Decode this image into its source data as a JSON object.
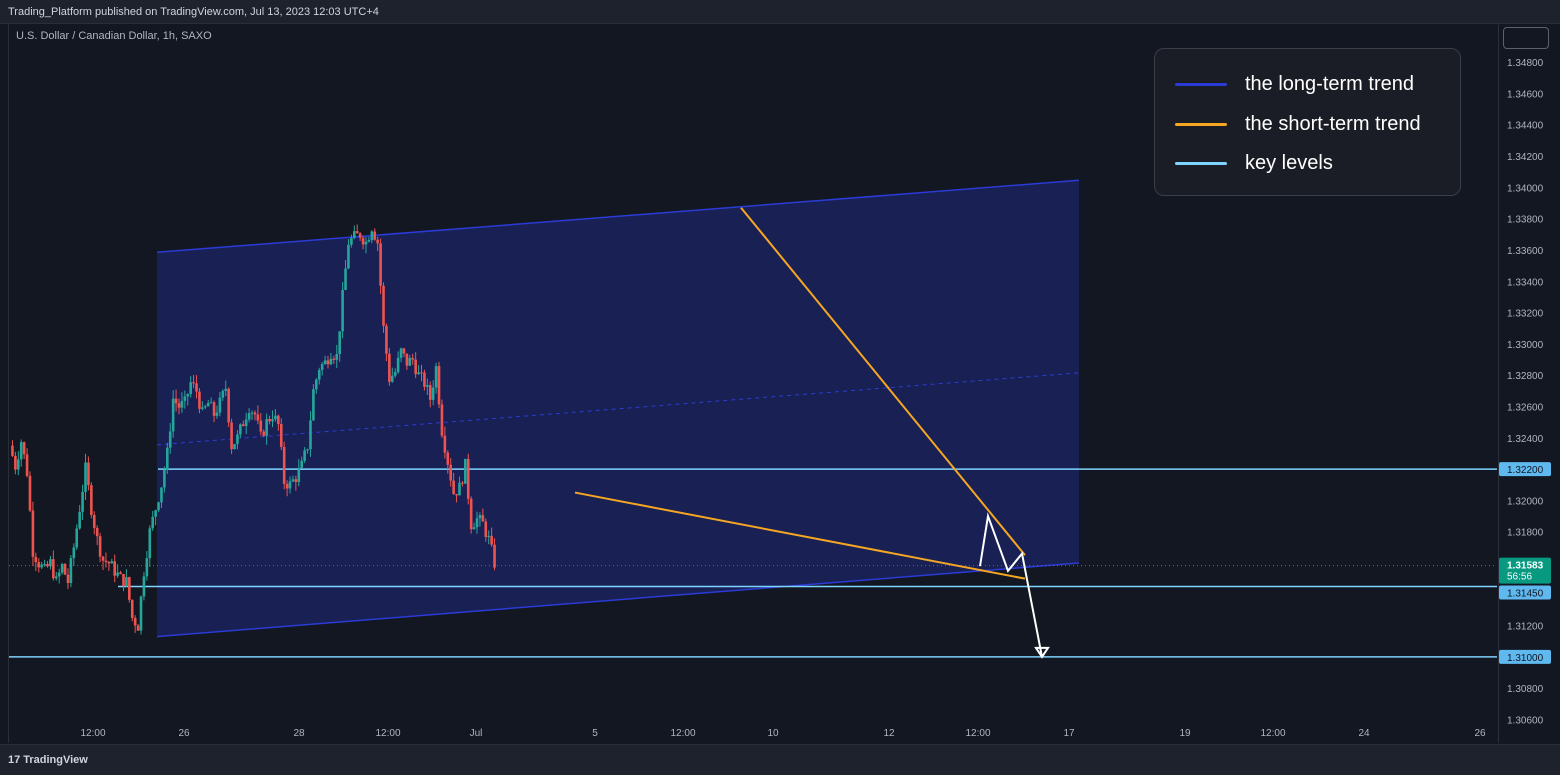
{
  "header": {
    "published": "Trading_Platform published on TradingView.com, Jul 13, 2023 12:03 UTC+4"
  },
  "symbol": "U.S. Dollar / Canadian Dollar, 1h, SAXO",
  "footer": {
    "brand": "TradingView"
  },
  "colors": {
    "background": "#131722",
    "up": "#26a69a",
    "down": "#ef5350",
    "channel": "#2b3bd6",
    "short_trend": "#f5a623",
    "key_level": "#7fd3ff",
    "projection": "#ffffff",
    "last_price_badge": "#089981"
  },
  "legend": [
    {
      "label": "the long-term trend",
      "color": "#2b3bd6"
    },
    {
      "label": "the short-term trend",
      "color": "#f5a623"
    },
    {
      "label": "key levels",
      "color": "#7fd3ff"
    }
  ],
  "chart_data": {
    "type": "candlestick",
    "ylim": [
      1.3045,
      1.3505
    ],
    "y_ticks": [
      "1.30600",
      "1.30800",
      "1.31000",
      "1.31200",
      "1.31400",
      "1.31600",
      "1.31800",
      "1.32000",
      "1.32200",
      "1.32400",
      "1.32600",
      "1.32800",
      "1.33000",
      "1.33200",
      "1.33400",
      "1.33600",
      "1.33800",
      "1.34000",
      "1.34200",
      "1.34400",
      "1.34600",
      "1.34800"
    ],
    "x_ticks": [
      "12:00",
      "26",
      "28",
      "12:00",
      "Jul",
      "5",
      "12:00",
      "10",
      "12",
      "12:00",
      "17",
      "19",
      "12:00",
      "24",
      "26"
    ],
    "last_price": {
      "value": "1.31583",
      "countdown": "56:56"
    },
    "key_levels": [
      {
        "label": "1.32200",
        "value": 1.322
      },
      {
        "label": "1.31450",
        "value": 1.3145
      },
      {
        "label": "1.31000",
        "value": 1.31
      }
    ],
    "price_path": [
      [
        0,
        1.3235
      ],
      [
        2,
        1.3222
      ],
      [
        4,
        1.3238
      ],
      [
        6,
        1.3218
      ],
      [
        8,
        1.3168
      ],
      [
        10,
        1.316
      ],
      [
        12,
        1.3155
      ],
      [
        14,
        1.316
      ],
      [
        16,
        1.3148
      ],
      [
        18,
        1.3158
      ],
      [
        20,
        1.3148
      ],
      [
        22,
        1.317
      ],
      [
        24,
        1.3195
      ],
      [
        26,
        1.322
      ],
      [
        28,
        1.3195
      ],
      [
        30,
        1.3175
      ],
      [
        32,
        1.3162
      ],
      [
        34,
        1.316
      ],
      [
        36,
        1.3155
      ],
      [
        38,
        1.315
      ],
      [
        40,
        1.3148
      ],
      [
        42,
        1.3125
      ],
      [
        44,
        1.312
      ],
      [
        46,
        1.3155
      ],
      [
        48,
        1.318
      ],
      [
        50,
        1.3195
      ],
      [
        52,
        1.321
      ],
      [
        54,
        1.323
      ],
      [
        56,
        1.3265
      ],
      [
        58,
        1.326
      ],
      [
        60,
        1.3262
      ],
      [
        62,
        1.3275
      ],
      [
        64,
        1.327
      ],
      [
        66,
        1.3255
      ],
      [
        68,
        1.3262
      ],
      [
        70,
        1.3255
      ],
      [
        72,
        1.3262
      ],
      [
        74,
        1.3272
      ],
      [
        76,
        1.3235
      ],
      [
        78,
        1.324
      ],
      [
        80,
        1.325
      ],
      [
        82,
        1.326
      ],
      [
        84,
        1.3255
      ],
      [
        86,
        1.324
      ],
      [
        88,
        1.325
      ],
      [
        90,
        1.3255
      ],
      [
        92,
        1.3248
      ],
      [
        94,
        1.3212
      ],
      [
        96,
        1.321
      ],
      [
        98,
        1.3215
      ],
      [
        100,
        1.3222
      ],
      [
        102,
        1.3235
      ],
      [
        104,
        1.327
      ],
      [
        106,
        1.3285
      ],
      [
        108,
        1.3288
      ],
      [
        110,
        1.3295
      ],
      [
        112,
        1.3292
      ],
      [
        114,
        1.333
      ],
      [
        116,
        1.3365
      ],
      [
        118,
        1.3368
      ],
      [
        120,
        1.337
      ],
      [
        122,
        1.3365
      ],
      [
        124,
        1.3375
      ],
      [
        126,
        1.3365
      ],
      [
        128,
        1.331
      ],
      [
        130,
        1.3278
      ],
      [
        132,
        1.3282
      ],
      [
        134,
        1.3295
      ],
      [
        136,
        1.3288
      ],
      [
        138,
        1.329
      ],
      [
        140,
        1.328
      ],
      [
        142,
        1.3275
      ],
      [
        144,
        1.3265
      ],
      [
        146,
        1.3285
      ],
      [
        148,
        1.3245
      ],
      [
        150,
        1.3225
      ],
      [
        152,
        1.3205
      ],
      [
        154,
        1.3208
      ],
      [
        156,
        1.3222
      ],
      [
        158,
        1.3185
      ],
      [
        160,
        1.3188
      ],
      [
        162,
        1.3185
      ],
      [
        164,
        1.3175
      ],
      [
        166,
        1.316
      ]
    ],
    "annotations": {
      "long_term_channel": {
        "upper": [
          [
            1.33585,
            0
          ],
          [
            1.34045,
            1
          ]
        ],
        "lower": [
          [
            1.3113,
            0
          ],
          [
            1.316,
            1
          ]
        ],
        "mid": [
          [
            1.32355,
            0
          ],
          [
            1.32815,
            1
          ]
        ]
      },
      "short_term_trend": {
        "upper_from": 1.3387,
        "upper_to": 1.3165,
        "lower_from": 1.3205,
        "lower_to": 1.315
      },
      "projection": [
        1.3158,
        1.319,
        1.3155,
        1.3166,
        1.31
      ]
    }
  }
}
